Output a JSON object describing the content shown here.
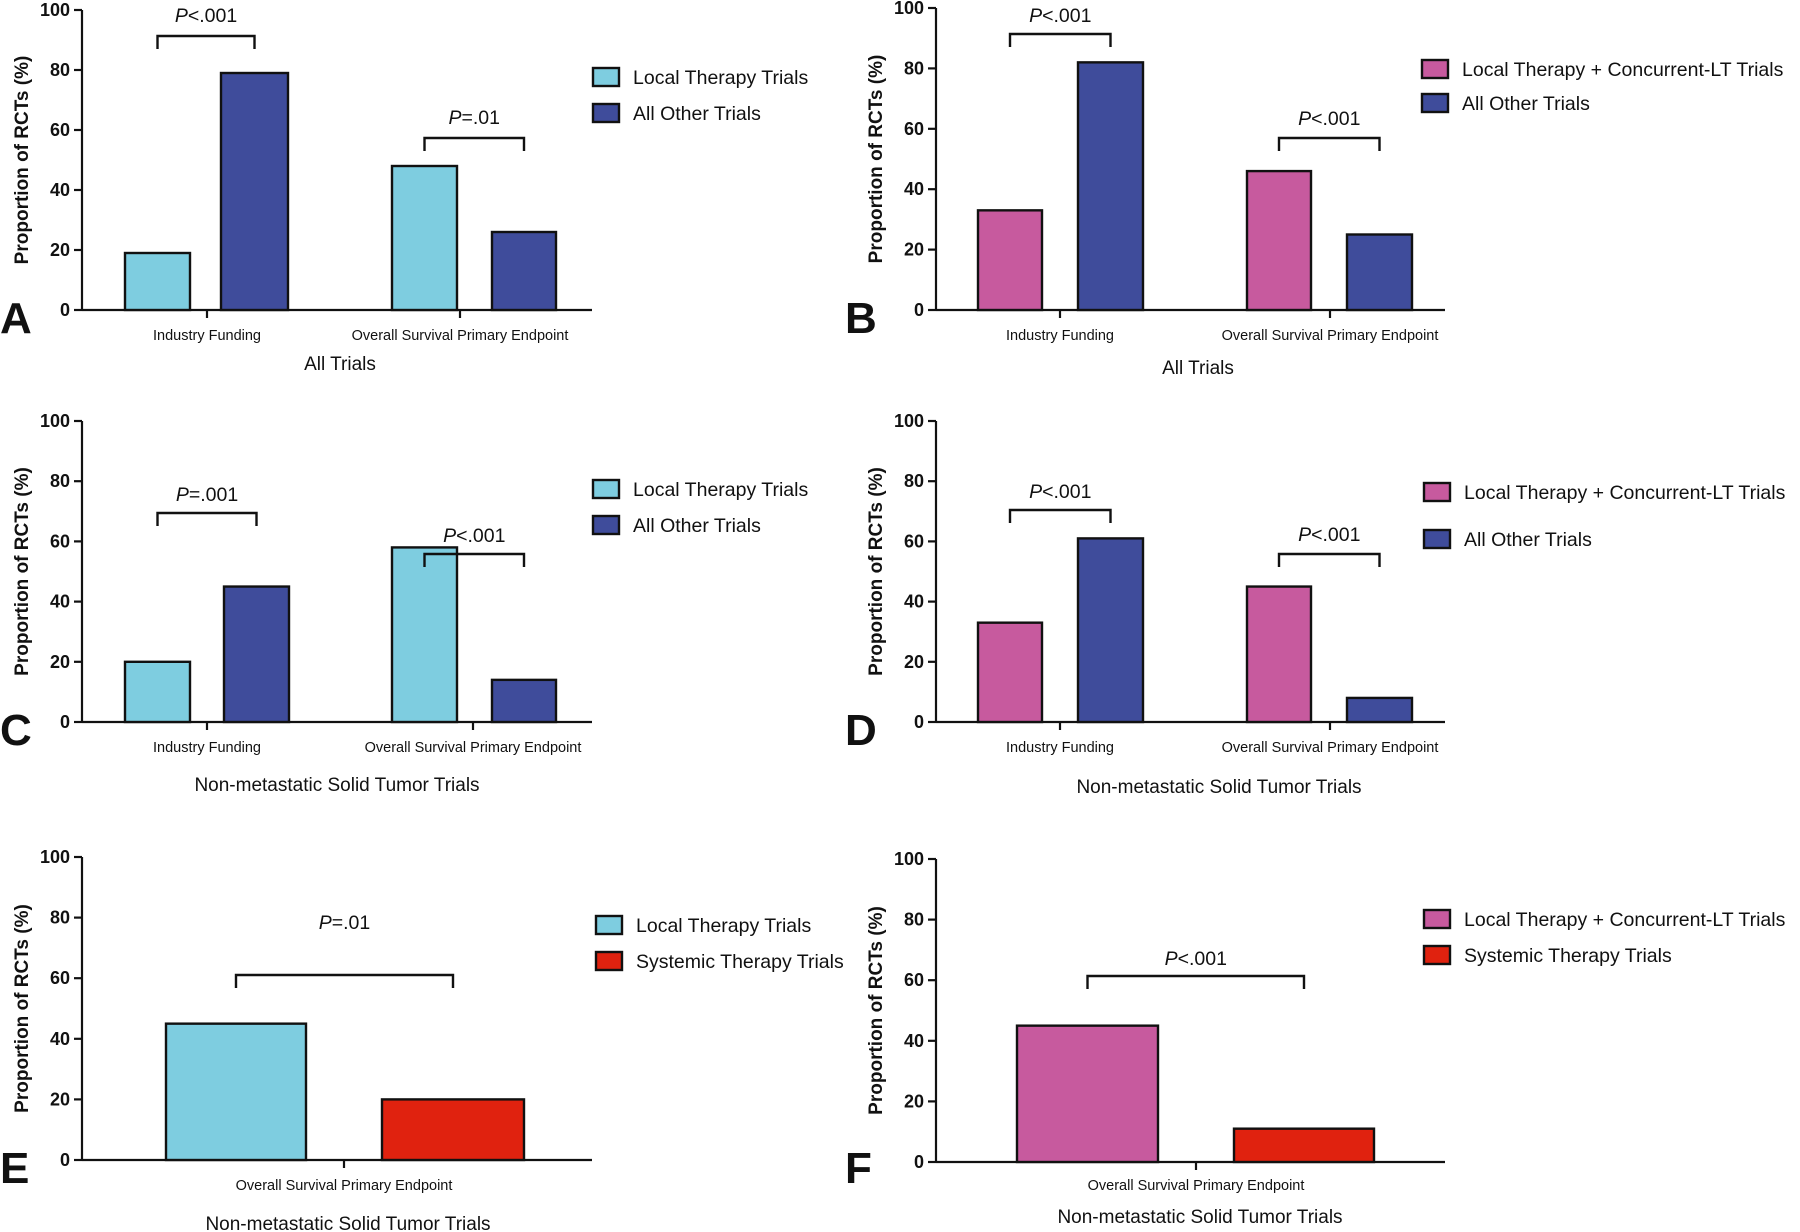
{
  "colors": {
    "local": "#7ecde0",
    "other": "#3f4c9b",
    "concurrent": "#c75a9e",
    "systemic": "#e0220f",
    "axis": "#111111"
  },
  "chart_data": [
    {
      "panel": "A",
      "type": "bar",
      "title": "",
      "xlabel": "All Trials",
      "ylabel": "Proportion of RCTs (%)",
      "ylim": [
        0,
        100
      ],
      "yticks": [
        "0",
        "20",
        "40",
        "60",
        "80",
        "100"
      ],
      "categories": [
        "Industry Funding",
        "Overall Survival Primary Endpoint"
      ],
      "series": [
        {
          "name": "Local Therapy Trials",
          "color": "local",
          "values": [
            19,
            48
          ]
        },
        {
          "name": "All Other Trials",
          "color": "other",
          "values": [
            79,
            26
          ]
        }
      ],
      "annotations": [
        {
          "category": 0,
          "p_italic": "P",
          "p_rest": "<.001"
        },
        {
          "category": 1,
          "p_italic": "P",
          "p_rest": "=.01"
        }
      ]
    },
    {
      "panel": "B",
      "type": "bar",
      "title": "",
      "xlabel": "All Trials",
      "ylabel": "Proportion of RCTs (%)",
      "ylim": [
        0,
        100
      ],
      "yticks": [
        "0",
        "20",
        "40",
        "60",
        "80",
        "100"
      ],
      "categories": [
        "Industry Funding",
        "Overall Survival Primary Endpoint"
      ],
      "series": [
        {
          "name": "Local Therapy + Concurrent-LT Trials",
          "color": "concurrent",
          "values": [
            33,
            46
          ]
        },
        {
          "name": "All Other Trials",
          "color": "other",
          "values": [
            82,
            25
          ]
        }
      ],
      "annotations": [
        {
          "category": 0,
          "p_italic": "P",
          "p_rest": "<.001"
        },
        {
          "category": 1,
          "p_italic": "P",
          "p_rest": "<.001"
        }
      ]
    },
    {
      "panel": "C",
      "type": "bar",
      "title": "",
      "xlabel": "Non-metastatic Solid Tumor Trials",
      "ylabel": "Proportion of RCTs (%)",
      "ylim": [
        0,
        100
      ],
      "yticks": [
        "0",
        "20",
        "40",
        "60",
        "80",
        "100"
      ],
      "categories": [
        "Industry Funding",
        "Overall Survival Primary Endpoint"
      ],
      "series": [
        {
          "name": "Local Therapy Trials",
          "color": "local",
          "values": [
            20,
            58
          ]
        },
        {
          "name": "All Other Trials",
          "color": "other",
          "values": [
            45,
            14
          ]
        }
      ],
      "series_order_note": "",
      "annotations": [
        {
          "category": 0,
          "p_italic": "P",
          "p_rest": "=.001"
        },
        {
          "category": 1,
          "p_italic": "P",
          "p_rest": "<.001"
        }
      ]
    },
    {
      "panel": "D",
      "type": "bar",
      "title": "",
      "xlabel": "Non-metastatic Solid Tumor Trials",
      "ylabel": "Proportion of RCTs (%)",
      "ylim": [
        0,
        100
      ],
      "yticks": [
        "0",
        "20",
        "40",
        "60",
        "80",
        "100"
      ],
      "categories": [
        "Industry Funding",
        "Overall Survival Primary Endpoint"
      ],
      "series": [
        {
          "name": "Local Therapy + Concurrent-LT Trials",
          "color": "concurrent",
          "values": [
            33,
            45
          ]
        },
        {
          "name": "All Other Trials",
          "color": "other",
          "values": [
            61,
            8
          ]
        }
      ],
      "annotations": [
        {
          "category": 0,
          "p_italic": "P",
          "p_rest": "<.001"
        },
        {
          "category": 1,
          "p_italic": "P",
          "p_rest": "<.001"
        }
      ]
    },
    {
      "panel": "E",
      "type": "bar",
      "title": "",
      "xlabel": "Non-metastatic Solid Tumor Trials",
      "ylabel": "Proportion of RCTs (%)",
      "ylim": [
        0,
        100
      ],
      "yticks": [
        "0",
        "20",
        "40",
        "60",
        "80",
        "100"
      ],
      "categories": [
        "Overall Survival Primary Endpoint"
      ],
      "series": [
        {
          "name": "Local Therapy Trials",
          "color": "local",
          "values": [
            45
          ]
        },
        {
          "name": "Systemic Therapy Trials",
          "color": "systemic",
          "values": [
            20
          ]
        }
      ],
      "annotations": [
        {
          "category": 0,
          "p_italic": "P",
          "p_rest": "=.01"
        }
      ]
    },
    {
      "panel": "F",
      "type": "bar",
      "title": "",
      "xlabel": "Non-metastatic Solid Tumor Trials",
      "ylabel": "Proportion of RCTs (%)",
      "ylim": [
        0,
        100
      ],
      "yticks": [
        "0",
        "20",
        "40",
        "60",
        "80",
        "100"
      ],
      "categories": [
        "Overall Survival Primary Endpoint"
      ],
      "series": [
        {
          "name": "Local Therapy + Concurrent-LT Trials",
          "color": "concurrent",
          "values": [
            45
          ]
        },
        {
          "name": "Systemic Therapy Trials",
          "color": "systemic",
          "values": [
            11
          ]
        }
      ],
      "annotations": [
        {
          "category": 0,
          "p_italic": "P",
          "p_rest": "<.001"
        }
      ]
    }
  ]
}
